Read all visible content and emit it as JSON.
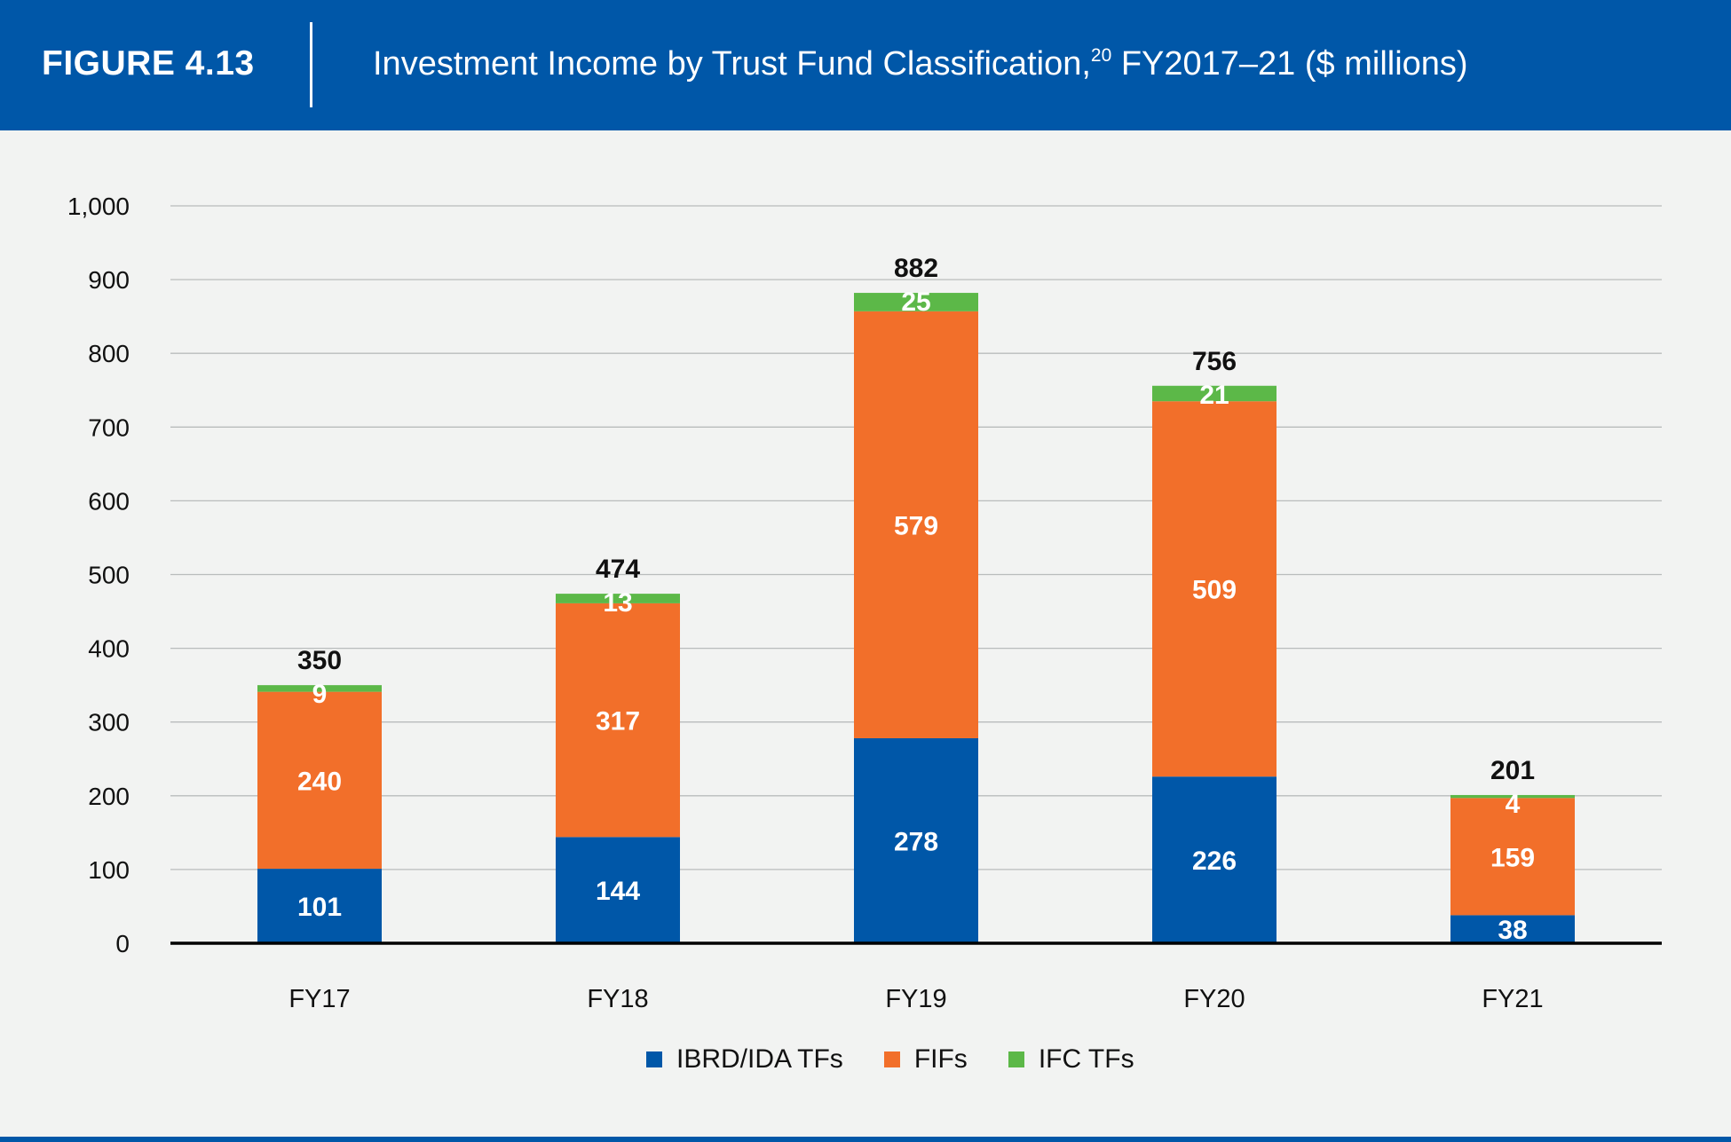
{
  "header": {
    "figure_label": "FIGURE 4.13",
    "title_main": "Investment Income by Trust Fund Classification,",
    "title_superscript": "20",
    "title_tail": " FY2017–21 ($ millions)"
  },
  "chart_data": {
    "type": "bar",
    "stacked": true,
    "title": "Investment Income by Trust Fund Classification, FY2017–21 ($ millions)",
    "categories": [
      "FY17",
      "FY18",
      "FY19",
      "FY20",
      "FY21"
    ],
    "series": [
      {
        "name": "IBRD/IDA TFs",
        "values": [
          101,
          144,
          278,
          226,
          38
        ],
        "color": "#0057a8"
      },
      {
        "name": "FIFs",
        "values": [
          240,
          317,
          579,
          509,
          159
        ],
        "color": "#f26f2a"
      },
      {
        "name": "IFC TFs",
        "values": [
          9,
          13,
          25,
          21,
          4
        ],
        "color": "#5cb848"
      }
    ],
    "totals": [
      350,
      474,
      882,
      756,
      201
    ],
    "ylim": [
      0,
      1000
    ],
    "yticks": [
      "0",
      "100",
      "200",
      "300",
      "400",
      "500",
      "600",
      "700",
      "800",
      "900",
      "1,000"
    ],
    "grid": true,
    "legend_position": "bottom-center",
    "xlabel": "",
    "ylabel": ""
  }
}
